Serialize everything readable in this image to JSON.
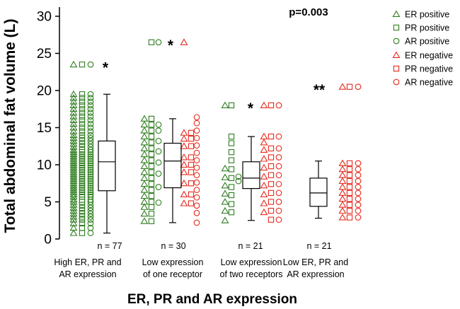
{
  "chart_data": {
    "type": "boxplot",
    "title": "",
    "xlabel": "ER, PR and AR expression",
    "ylabel": "Total abdominal fat volume (L)",
    "ylim": [
      0,
      30
    ],
    "yticks": [
      0,
      5,
      10,
      15,
      20,
      25,
      30
    ],
    "grid": false,
    "p_value_label": "p=0.003",
    "colors": {
      "positive": "#2e7d1e",
      "negative": "#e8291c",
      "box": "#000000"
    },
    "legend": {
      "placement": "top-right",
      "entries": [
        {
          "label": "ER positive",
          "marker": "triangle",
          "status": "positive"
        },
        {
          "label": "PR positive",
          "marker": "square",
          "status": "positive"
        },
        {
          "label": "AR positive",
          "marker": "circle",
          "status": "positive"
        },
        {
          "label": "ER negative",
          "marker": "triangle",
          "status": "negative"
        },
        {
          "label": "PR negative",
          "marker": "square",
          "status": "negative"
        },
        {
          "label": "AR negative",
          "marker": "circle",
          "status": "negative"
        }
      ]
    },
    "groups": [
      {
        "label_lines": [
          "High ER, PR and",
          "AR expression"
        ],
        "n_label": "n = 77",
        "box": {
          "whisker_low": 0.8,
          "q1": 6.5,
          "median": 10.4,
          "q3": 13.2,
          "whisker_high": 19.5
        },
        "outliers": [
          {
            "value": 23.5,
            "marker": "*"
          }
        ],
        "points": {
          "positive": {
            "ER": [
              0.8,
              1.5,
              2.1,
              2.6,
              3.0,
              3.4,
              3.8,
              4.2,
              4.6,
              5.0,
              5.3,
              5.7,
              6.0,
              6.3,
              6.6,
              6.9,
              7.2,
              7.5,
              7.8,
              8.1,
              8.4,
              8.7,
              9.0,
              9.3,
              9.6,
              9.9,
              10.2,
              10.5,
              10.8,
              11.1,
              11.4,
              11.7,
              12.0,
              12.4,
              12.8,
              13.2,
              13.6,
              14.0,
              14.5,
              15.0,
              15.5,
              16.0,
              16.5,
              17.0,
              17.5,
              18.0,
              18.5,
              19.0,
              19.5,
              23.5
            ],
            "PR": [
              0.8,
              1.5,
              2.1,
              2.6,
              3.0,
              3.4,
              3.8,
              4.2,
              4.6,
              5.0,
              5.3,
              5.7,
              6.0,
              6.3,
              6.6,
              6.9,
              7.2,
              7.5,
              7.8,
              8.1,
              8.4,
              8.7,
              9.0,
              9.3,
              9.6,
              9.9,
              10.2,
              10.5,
              10.8,
              11.1,
              11.4,
              11.7,
              12.0,
              12.4,
              12.8,
              13.2,
              13.6,
              14.0,
              14.5,
              15.0,
              15.5,
              16.0,
              16.5,
              17.0,
              17.5,
              18.0,
              18.5,
              19.0,
              19.5,
              23.5
            ],
            "AR": [
              0.8,
              1.5,
              2.1,
              2.6,
              3.0,
              3.4,
              3.8,
              4.2,
              4.6,
              5.0,
              5.3,
              5.7,
              6.0,
              6.3,
              6.6,
              6.9,
              7.2,
              7.5,
              7.8,
              8.1,
              8.4,
              8.7,
              9.0,
              9.3,
              9.6,
              9.9,
              10.2,
              10.5,
              10.8,
              11.1,
              11.4,
              11.7,
              12.0,
              12.4,
              12.8,
              13.2,
              13.6,
              14.0,
              14.5,
              15.0,
              15.5,
              16.0,
              16.5,
              17.0,
              17.5,
              18.0,
              18.5,
              19.0,
              19.5,
              23.5
            ]
          },
          "negative": {
            "ER": [],
            "PR": [],
            "AR": []
          }
        }
      },
      {
        "label_lines": [
          "Low expression",
          "of one receptor"
        ],
        "n_label": "n = 30",
        "box": {
          "whisker_low": 2.2,
          "q1": 6.9,
          "median": 10.5,
          "q3": 12.9,
          "whisker_high": 16.2
        },
        "outliers": [
          {
            "value": 26.5,
            "marker": "*"
          }
        ],
        "points": {
          "positive": {
            "ER": [
              2.4,
              3.4,
              4.3,
              5.0,
              5.8,
              6.6,
              7.4,
              8.2,
              9.0,
              9.8,
              10.6,
              11.4,
              12.2,
              13.0,
              13.8,
              14.6,
              15.4,
              16.2
            ],
            "PR": [
              2.4,
              3.4,
              4.3,
              5.0,
              5.8,
              6.6,
              7.4,
              8.2,
              9.0,
              9.8,
              10.6,
              11.4,
              12.2,
              13.0,
              13.8,
              14.6,
              15.4,
              16.2,
              26.5
            ],
            "AR": [
              4.9,
              7.0,
              8.8,
              10.3,
              11.8,
              13.2,
              14.6,
              15.4,
              26.5
            ]
          },
          "negative": {
            "ER": [
              4.8,
              6.0,
              7.5,
              9.0,
              10.0,
              11.0,
              12.5,
              13.5,
              14.3,
              26.5
            ],
            "PR": [
              4.8,
              6.0,
              7.5,
              9.0,
              10.0,
              11.0,
              12.5,
              13.5,
              14.3
            ],
            "AR": [
              2.2,
              3.5,
              4.5,
              5.6,
              6.6,
              7.6,
              8.6,
              9.6,
              10.6,
              11.6,
              12.6,
              13.6,
              14.6,
              15.6,
              16.4
            ]
          }
        }
      },
      {
        "label_lines": [
          "Low expression",
          "of two receptors"
        ],
        "n_label": "n = 21",
        "box": {
          "whisker_low": 2.5,
          "q1": 6.8,
          "median": 8.2,
          "q3": 10.4,
          "whisker_high": 13.8
        },
        "outliers": [
          {
            "value": 18.0,
            "marker": "*"
          }
        ],
        "points": {
          "positive": {
            "ER": [
              2.5,
              3.8,
              5.0,
              6.1,
              7.2,
              8.3,
              9.5,
              18.0
            ],
            "PR": [
              3.6,
              4.7,
              5.9,
              7.0,
              8.2,
              9.4,
              10.6,
              11.7,
              12.9,
              13.8,
              18.0
            ],
            "AR": [
              7.8,
              8.4
            ]
          },
          "negative": {
            "ER": [
              3.6,
              4.8,
              6.0,
              7.2,
              8.4,
              9.6,
              10.8,
              12.0,
              13.0,
              13.8,
              18.0
            ],
            "PR": [
              2.6,
              3.8,
              5.0,
              6.2,
              7.4,
              8.6,
              9.8,
              11.0,
              12.2,
              13.8,
              18.0
            ],
            "AR": [
              2.6,
              3.8,
              5.0,
              6.2,
              7.4,
              8.6,
              9.8,
              11.0,
              12.2,
              13.8,
              18.0
            ]
          }
        }
      },
      {
        "label_lines": [
          "Low ER, PR and",
          "AR expression"
        ],
        "n_label": "n = 21",
        "box": {
          "whisker_low": 2.8,
          "q1": 4.4,
          "median": 6.2,
          "q3": 8.2,
          "whisker_high": 10.5
        },
        "outliers": [
          {
            "value": 20.5,
            "marker": "**"
          }
        ],
        "points": {
          "positive": {
            "ER": [],
            "PR": [],
            "AR": []
          },
          "negative": {
            "ER": [
              2.9,
              3.8,
              4.6,
              5.4,
              6.2,
              7.0,
              7.8,
              8.6,
              9.4,
              10.2,
              20.5
            ],
            "PR": [
              2.9,
              3.8,
              4.6,
              5.4,
              6.2,
              7.0,
              7.8,
              8.6,
              9.4,
              10.2,
              20.5
            ],
            "AR": [
              2.9,
              3.8,
              4.6,
              5.4,
              6.2,
              7.0,
              7.8,
              8.6,
              9.4,
              10.2,
              20.5
            ]
          }
        }
      }
    ]
  }
}
